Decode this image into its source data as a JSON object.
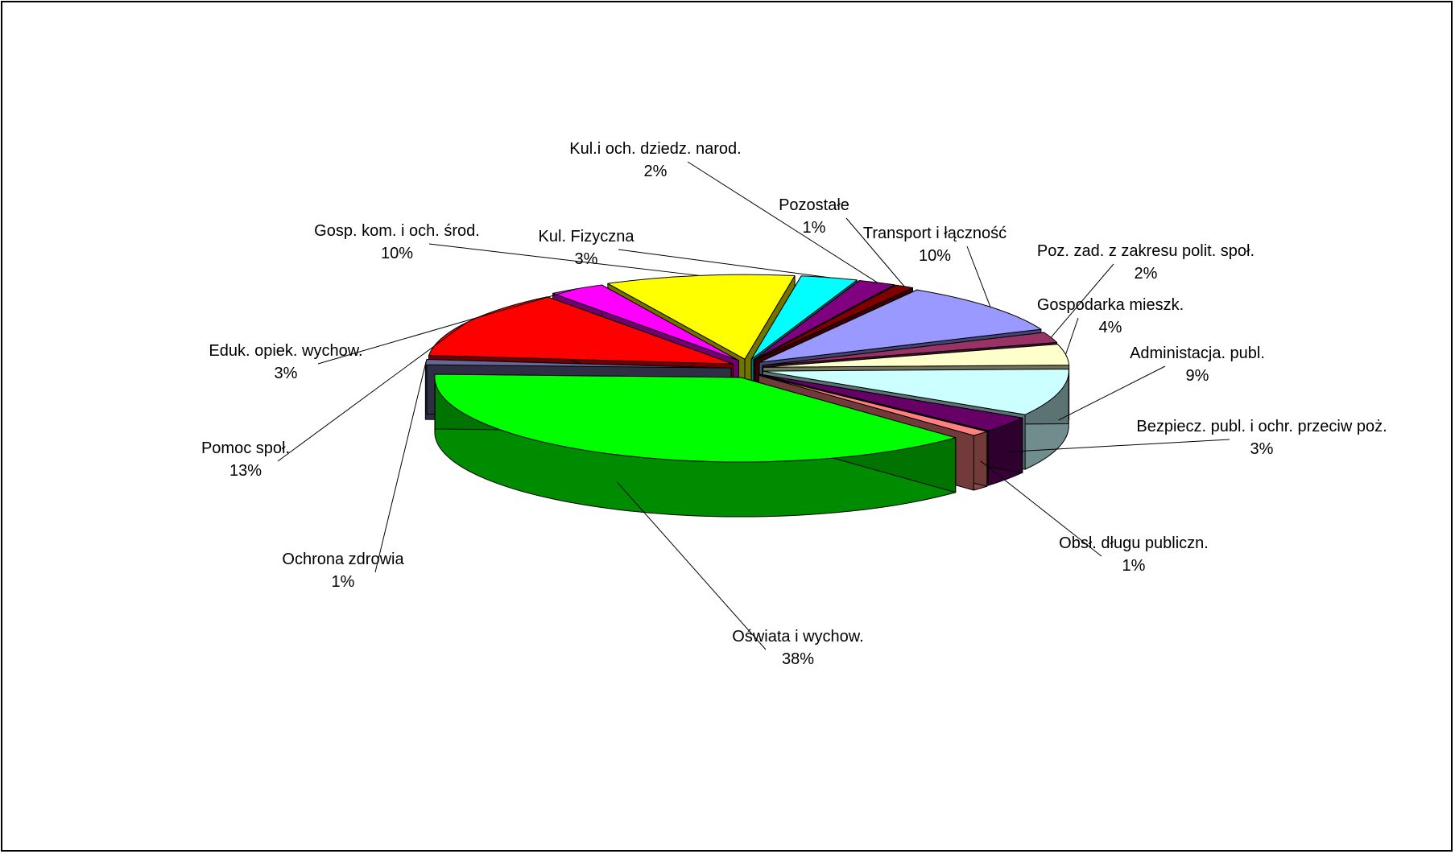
{
  "chart_data": {
    "type": "pie",
    "three_d": true,
    "exploded": true,
    "title": "",
    "legend": "none",
    "slices": [
      {
        "label": "Transport i łączność",
        "value": 10,
        "pct": "10%",
        "color": "#9999FF"
      },
      {
        "label": "Poz. zad. z zakresu polit. społ.",
        "value": 2,
        "pct": "2%",
        "color": "#993366"
      },
      {
        "label": "Gospodarka mieszk.",
        "value": 4,
        "pct": "4%",
        "color": "#FFFFCC"
      },
      {
        "label": "Administacja. publ.",
        "value": 9,
        "pct": "9%",
        "color": "#CCFFFF"
      },
      {
        "label": "Bezpiecz. publ. i ochr. przeciw poż.",
        "value": 3,
        "pct": "3%",
        "color": "#660066"
      },
      {
        "label": "Obsł. długu publiczn.",
        "value": 1,
        "pct": "1%",
        "color": "#FF8080"
      },
      {
        "label": "Oświata i wychow.",
        "value": 38,
        "pct": "38%",
        "color": "#00FF00"
      },
      {
        "label": "Ochrona zdrowia",
        "value": 1,
        "pct": "1%",
        "color": "#666699"
      },
      {
        "label": "Pomoc społ.",
        "value": 13,
        "pct": "13%",
        "color": "#FF0000"
      },
      {
        "label": "Eduk. opiek. wychow.",
        "value": 3,
        "pct": "3%",
        "color": "#FF00FF"
      },
      {
        "label": "Gosp. kom. i och. środ.",
        "value": 10,
        "pct": "10%",
        "color": "#FFFF00"
      },
      {
        "label": "Kul. Fizyczna",
        "value": 3,
        "pct": "3%",
        "color": "#00FFFF"
      },
      {
        "label": "Kul.i och. dziedz. narod.",
        "value": 2,
        "pct": "2%",
        "color": "#800080"
      },
      {
        "label": "Pozostałe",
        "value": 1,
        "pct": "1%",
        "color": "#800000"
      }
    ]
  }
}
